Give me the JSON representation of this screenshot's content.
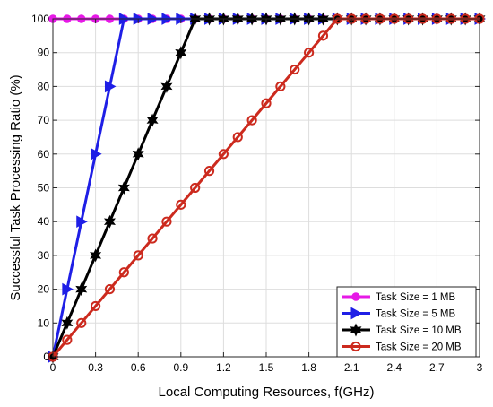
{
  "chart_data": {
    "type": "line",
    "xlabel": "Local Computing Resources, f(GHz)",
    "ylabel": "Successful Task Processing Ratio (%)",
    "xlim": [
      0,
      3
    ],
    "ylim": [
      0,
      100
    ],
    "x_ticks": [
      "0",
      "0.3",
      "0.6",
      "0.9",
      "1.2",
      "1.5",
      "1.8",
      "2.1",
      "2.4",
      "2.7",
      "3"
    ],
    "y_ticks": [
      "0",
      "10",
      "20",
      "30",
      "40",
      "50",
      "60",
      "70",
      "80",
      "90",
      "100"
    ],
    "grid": true,
    "legend_position": "bottom-right",
    "x": [
      0,
      0.1,
      0.2,
      0.3,
      0.4,
      0.5,
      0.6,
      0.7,
      0.8,
      0.9,
      1.0,
      1.1,
      1.2,
      1.3,
      1.4,
      1.5,
      1.6,
      1.7,
      1.8,
      1.9,
      2.0,
      2.1,
      2.2,
      2.3,
      2.4,
      2.5,
      2.6,
      2.7,
      2.8,
      2.9,
      3.0
    ],
    "series": [
      {
        "name": "Task Size = 1 MB",
        "color": "#e619e6",
        "marker": "circle-filled",
        "values": [
          100,
          100,
          100,
          100,
          100,
          100,
          100,
          100,
          100,
          100,
          100,
          100,
          100,
          100,
          100,
          100,
          100,
          100,
          100,
          100,
          100,
          100,
          100,
          100,
          100,
          100,
          100,
          100,
          100,
          100,
          100
        ]
      },
      {
        "name": "Task Size = 5 MB",
        "color": "#1f1fe6",
        "marker": "triangle-right",
        "values": [
          0,
          20,
          40,
          60,
          80,
          100,
          100,
          100,
          100,
          100,
          100,
          100,
          100,
          100,
          100,
          100,
          100,
          100,
          100,
          100,
          100,
          100,
          100,
          100,
          100,
          100,
          100,
          100,
          100,
          100,
          100
        ]
      },
      {
        "name": "Task Size = 10 MB",
        "color": "#000000",
        "marker": "hexagram",
        "values": [
          0,
          10,
          20,
          30,
          40,
          50,
          60,
          70,
          80,
          90,
          100,
          100,
          100,
          100,
          100,
          100,
          100,
          100,
          100,
          100,
          100,
          100,
          100,
          100,
          100,
          100,
          100,
          100,
          100,
          100,
          100
        ]
      },
      {
        "name": "Task Size = 20 MB",
        "color": "#cc2a1e",
        "marker": "circle-open",
        "values": [
          0,
          5,
          10,
          15,
          20,
          25,
          30,
          35,
          40,
          45,
          50,
          55,
          60,
          65,
          70,
          75,
          80,
          85,
          90,
          95,
          100,
          100,
          100,
          100,
          100,
          100,
          100,
          100,
          100,
          100,
          100
        ]
      }
    ]
  }
}
